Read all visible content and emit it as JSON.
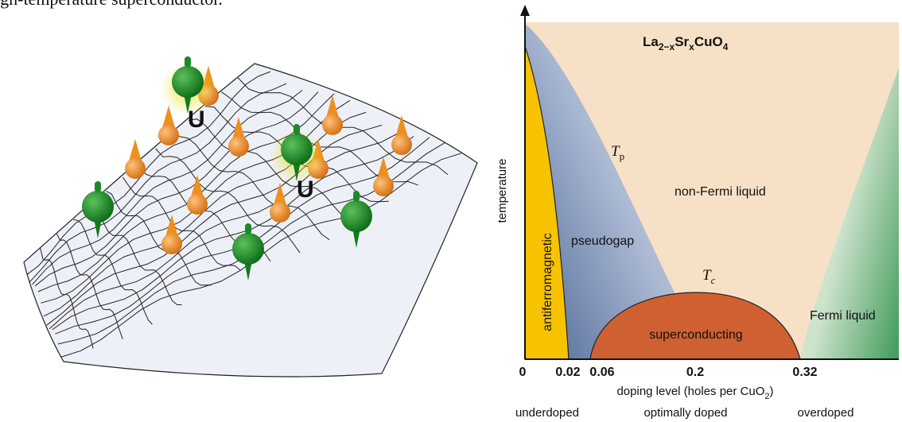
{
  "caption_fragment": "igh-temperature superconductor.",
  "illustration": {
    "interaction_labels": [
      "U",
      "U"
    ]
  },
  "phase_diagram": {
    "title": {
      "parts": [
        "La",
        "2−x",
        "Sr",
        "x",
        "CuO",
        "4"
      ]
    },
    "y_axis_label": "temperature",
    "x_axis_label": {
      "parts": [
        "doping level (holes per CuO",
        "2",
        ")"
      ]
    },
    "x_tick_labels": [
      "0",
      "0.02",
      "0.06",
      "0.2",
      "0.32"
    ],
    "regions": {
      "antiferromagnetic": "antiferromagnetic",
      "pseudogap": "pseudogap",
      "non_fermi_liquid": "non-Fermi liquid",
      "superconducting": "superconducting",
      "fermi_liquid": "Fermi liquid"
    },
    "tp_label": {
      "symbol": "T",
      "sub": "p"
    },
    "tc_label": {
      "symbol": "T",
      "sub": "c"
    },
    "doping_regimes": [
      "underdoped",
      "optimally doped",
      "overdoped"
    ]
  }
}
